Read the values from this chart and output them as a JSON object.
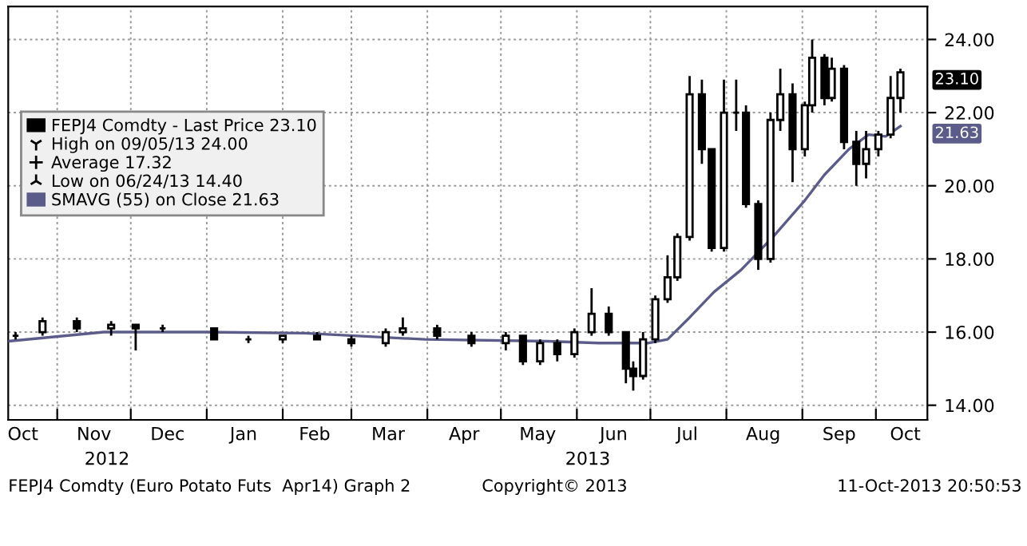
{
  "chart_data": {
    "type": "candlestick",
    "series": [
      {
        "name": "FEPJ4 Comdty - Last Price 23.10",
        "color": "#000000",
        "x": [
          "2012-10-15",
          "2012-10-26",
          "2012-11-09",
          "2012-11-23",
          "2012-12-03",
          "2012-12-14",
          "2013-01-04",
          "2013-01-18",
          "2013-02-01",
          "2013-02-15",
          "2013-03-01",
          "2013-03-15",
          "2013-03-22",
          "2013-04-05",
          "2013-04-19",
          "2013-05-03",
          "2013-05-10",
          "2013-05-17",
          "2013-05-24",
          "2013-05-31",
          "2013-06-07",
          "2013-06-14",
          "2013-06-21",
          "2013-06-24",
          "2013-06-28",
          "2013-07-03",
          "2013-07-08",
          "2013-07-12",
          "2013-07-17",
          "2013-07-22",
          "2013-07-26",
          "2013-07-31",
          "2013-08-05",
          "2013-08-09",
          "2013-08-14",
          "2013-08-19",
          "2013-08-23",
          "2013-08-28",
          "2013-09-02",
          "2013-09-05",
          "2013-09-10",
          "2013-09-13",
          "2013-09-18",
          "2013-09-23",
          "2013-09-27",
          "2013-10-02",
          "2013-10-07",
          "2013-10-11"
        ],
        "ohlc": [
          [
            15.9,
            16.0,
            15.8,
            15.9
          ],
          [
            16.0,
            16.4,
            15.9,
            16.3
          ],
          [
            16.3,
            16.4,
            16.0,
            16.1
          ],
          [
            16.1,
            16.3,
            15.9,
            16.2
          ],
          [
            16.2,
            16.2,
            15.5,
            16.1
          ],
          [
            16.1,
            16.2,
            16.0,
            16.1
          ],
          [
            16.1,
            16.1,
            15.8,
            15.8
          ],
          [
            15.8,
            15.9,
            15.7,
            15.8
          ],
          [
            15.8,
            15.9,
            15.7,
            15.9
          ],
          [
            15.9,
            16.0,
            15.8,
            15.8
          ],
          [
            15.8,
            15.9,
            15.6,
            15.7
          ],
          [
            15.7,
            16.1,
            15.6,
            16.0
          ],
          [
            16.0,
            16.4,
            15.9,
            16.1
          ],
          [
            16.1,
            16.2,
            15.8,
            15.9
          ],
          [
            15.9,
            16.0,
            15.6,
            15.7
          ],
          [
            15.7,
            16.0,
            15.5,
            15.9
          ],
          [
            15.9,
            15.9,
            15.1,
            15.2
          ],
          [
            15.2,
            15.8,
            15.1,
            15.7
          ],
          [
            15.7,
            15.8,
            15.2,
            15.4
          ],
          [
            15.4,
            16.1,
            15.3,
            16.0
          ],
          [
            16.0,
            17.2,
            15.9,
            16.5
          ],
          [
            16.5,
            16.7,
            15.9,
            16.0
          ],
          [
            16.0,
            16.0,
            14.6,
            15.0
          ],
          [
            15.0,
            15.2,
            14.4,
            14.8
          ],
          [
            14.8,
            16.0,
            14.7,
            15.8
          ],
          [
            15.8,
            17.0,
            15.7,
            16.9
          ],
          [
            16.9,
            18.1,
            16.8,
            17.5
          ],
          [
            17.5,
            18.7,
            17.4,
            18.6
          ],
          [
            18.6,
            23.0,
            18.5,
            22.5
          ],
          [
            22.5,
            22.9,
            20.6,
            21.0
          ],
          [
            21.0,
            21.0,
            18.2,
            18.3
          ],
          [
            18.3,
            22.9,
            18.2,
            22.0
          ],
          [
            22.0,
            22.9,
            21.5,
            22.0
          ],
          [
            22.0,
            22.2,
            19.4,
            19.5
          ],
          [
            19.5,
            19.6,
            17.7,
            18.0
          ],
          [
            18.0,
            22.0,
            17.9,
            21.8
          ],
          [
            21.8,
            23.2,
            21.5,
            22.5
          ],
          [
            22.5,
            22.8,
            20.1,
            21.0
          ],
          [
            21.0,
            22.3,
            20.8,
            22.2
          ],
          [
            22.2,
            24.0,
            22.0,
            23.5
          ],
          [
            23.5,
            23.6,
            22.2,
            22.4
          ],
          [
            22.4,
            23.5,
            22.3,
            23.2
          ],
          [
            23.2,
            23.3,
            21.0,
            21.2
          ],
          [
            21.2,
            21.5,
            20.0,
            20.6
          ],
          [
            20.6,
            21.5,
            20.2,
            21.0
          ],
          [
            21.0,
            21.5,
            20.8,
            21.4
          ],
          [
            21.4,
            23.0,
            21.3,
            22.4
          ],
          [
            22.4,
            23.2,
            22.0,
            23.1
          ]
        ]
      },
      {
        "name": "SMAVG (55) on Close 21.63",
        "type": "line",
        "color": "#5c5c8a",
        "x": [
          "2012-10-12",
          "2012-11-20",
          "2012-12-31",
          "2013-02-10",
          "2013-03-31",
          "2013-05-20",
          "2013-06-10",
          "2013-06-30",
          "2013-07-08",
          "2013-07-17",
          "2013-07-27",
          "2013-08-07",
          "2013-08-20",
          "2013-09-02",
          "2013-09-10",
          "2013-09-20",
          "2013-09-28",
          "2013-10-05",
          "2013-10-11"
        ],
        "values": [
          15.75,
          16.0,
          16.0,
          15.97,
          15.8,
          15.75,
          15.7,
          15.7,
          15.8,
          16.4,
          17.1,
          17.7,
          18.6,
          19.6,
          20.3,
          21.0,
          21.4,
          21.35,
          21.63
        ]
      }
    ],
    "xlim": [
      "2012-10-12",
      "2013-10-22"
    ],
    "xticks": [
      {
        "value": "2012-11-01",
        "label": null
      },
      {
        "value": "2012-12-01",
        "label": null
      },
      {
        "value": "2013-01-01",
        "label": null
      },
      {
        "value": "2013-02-01",
        "label": null
      },
      {
        "value": "2013-03-01",
        "label": null
      },
      {
        "value": "2013-04-01",
        "label": null
      },
      {
        "value": "2013-05-01",
        "label": null
      },
      {
        "value": "2013-06-01",
        "label": null
      },
      {
        "value": "2013-07-01",
        "label": null
      },
      {
        "value": "2013-08-01",
        "label": null
      },
      {
        "value": "2013-09-01",
        "label": null
      },
      {
        "value": "2013-10-01",
        "label": null
      },
      {
        "value": "2012-10-18",
        "label": "Oct"
      },
      {
        "value": "2012-11-16",
        "label": "Nov"
      },
      {
        "value": "2012-12-16",
        "label": "Dec"
      },
      {
        "value": "2013-01-16",
        "label": "Jan"
      },
      {
        "value": "2013-02-14",
        "label": "Feb"
      },
      {
        "value": "2013-03-16",
        "label": "Mar"
      },
      {
        "value": "2013-04-16",
        "label": "Apr"
      },
      {
        "value": "2013-05-16",
        "label": "May"
      },
      {
        "value": "2013-06-16",
        "label": "Jun"
      },
      {
        "value": "2013-07-16",
        "label": "Jul"
      },
      {
        "value": "2013-08-16",
        "label": "Aug"
      },
      {
        "value": "2013-09-16",
        "label": "Sep"
      },
      {
        "value": "2013-10-13",
        "label": "Oct"
      }
    ],
    "ylim": [
      13.6,
      24.9
    ],
    "yticks": [
      {
        "value": 14,
        "label": "14.00"
      },
      {
        "value": 16,
        "label": "16.00"
      },
      {
        "value": 18,
        "label": "18.00"
      },
      {
        "value": 20,
        "label": "20.00"
      },
      {
        "value": 22,
        "label": "22.00"
      },
      {
        "value": 24,
        "label": "24.00"
      }
    ],
    "grid": true,
    "legend": "left",
    "annotations": [
      "High on 09/05/13 24.00",
      "Average 17.32",
      "Low on 06/24/13 14.40",
      {
        "text": "23.10",
        "x": "2013-10-11",
        "y": 23.1
      },
      {
        "text": "21.63",
        "x": "2013-10-11",
        "y": 21.63
      },
      "2012",
      "2013",
      "FEPJ4 Comdty (Euro Potato Futs  Apr14) Graph 2",
      "Copyright© 2013",
      "11-Oct-2013 20:50:53"
    ]
  }
}
